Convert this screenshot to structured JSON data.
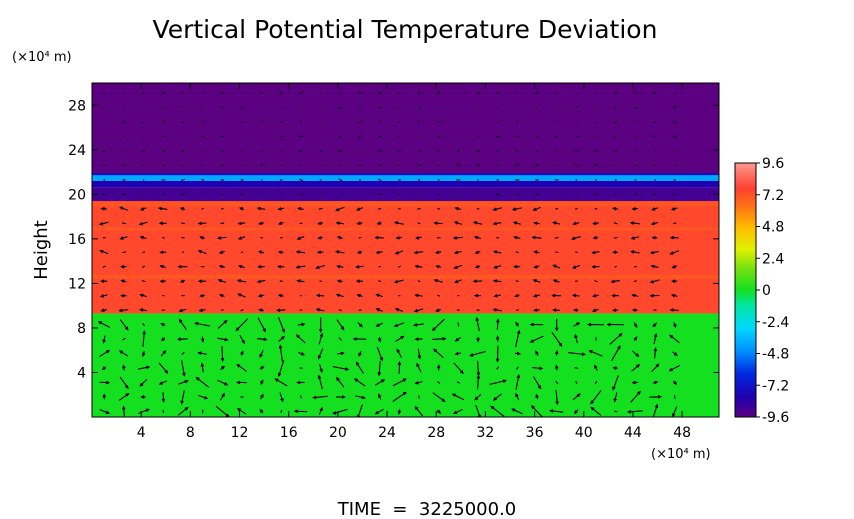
{
  "chart_data": {
    "type": "heatmap",
    "title": "Vertical Potential Temperature Deviation",
    "ylabel": "Height",
    "x_unit": "(×10⁴ m)",
    "y_unit": "(×10⁴ m)",
    "xlim": [
      0,
      51
    ],
    "ylim": [
      0,
      30
    ],
    "x_ticks": [
      4,
      8,
      12,
      16,
      20,
      24,
      28,
      32,
      36,
      40,
      44,
      48
    ],
    "y_ticks": [
      4,
      8,
      12,
      16,
      20,
      24,
      28
    ],
    "colorbar": {
      "min": -9.6,
      "max": 9.6,
      "tick_labels": [
        "9.6",
        "7.2",
        "4.8",
        "2.4",
        "0",
        "-2.4",
        "-4.8",
        "-7.2",
        "-9.6"
      ],
      "tick_values": [
        9.6,
        7.2,
        4.8,
        2.4,
        0,
        -2.4,
        -4.8,
        -7.2,
        -9.6
      ]
    },
    "layers": [
      {
        "y_range": [
          21.8,
          30
        ],
        "value": -9.6
      },
      {
        "y_range": [
          21.2,
          21.8
        ],
        "value": -4.0
      },
      {
        "y_range": [
          20.6,
          21.2
        ],
        "value": -8.0
      },
      {
        "y_range": [
          19.4,
          20.6
        ],
        "value": -9.0
      },
      {
        "y_range": [
          9.3,
          19.4
        ],
        "value": 7.5
      },
      {
        "y_range": [
          0,
          9.3
        ],
        "value": 0
      }
    ],
    "vector_field": true,
    "footer": "TIME  =  3225000.0"
  }
}
